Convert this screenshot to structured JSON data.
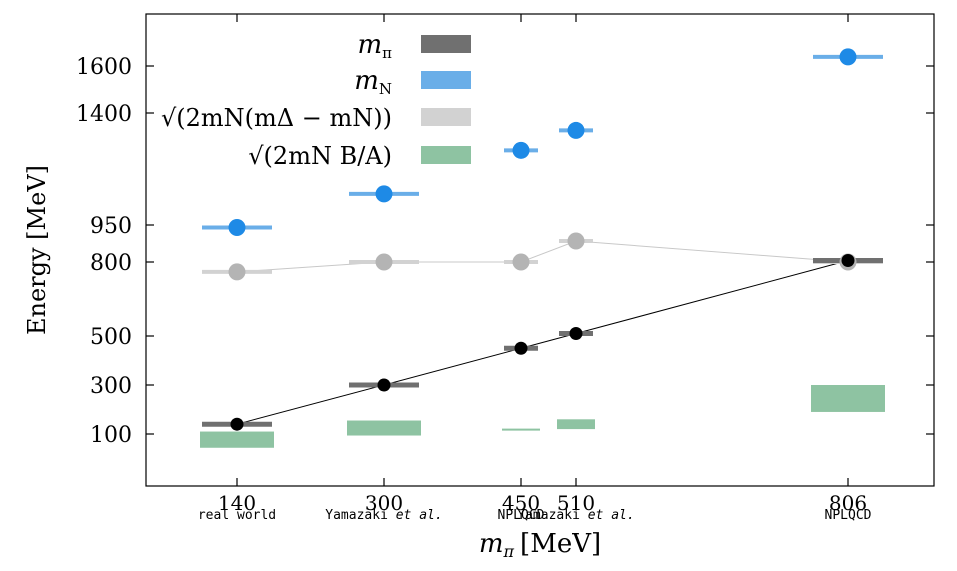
{
  "chart_data": {
    "type": "scatter",
    "title": "",
    "xlabel_main": "m",
    "xlabel_sub": "π",
    "xlabel_unit": "[MeV]",
    "ylabel": "Energy [MeV]",
    "ylim": [
      -70,
      1800
    ],
    "grid": false,
    "legend_position": "top-center",
    "x_categories": [
      {
        "id": "c140",
        "label": "140",
        "sublabel_parts": [
          "real world"
        ]
      },
      {
        "id": "c300",
        "label": "300",
        "sublabel_parts": [
          "Yamazaki ",
          "et al.",
          ""
        ]
      },
      {
        "id": "c450",
        "label": "450",
        "sublabel_parts": [
          "NPLQCD"
        ]
      },
      {
        "id": "c510",
        "label": "510",
        "sublabel_parts": [
          "Yamazaki ",
          "et al.",
          ""
        ]
      },
      {
        "id": "c806",
        "label": "806",
        "sublabel_parts": [
          "NPLQCD"
        ]
      }
    ],
    "y_ticks": [
      100,
      300,
      500,
      800,
      950,
      1400,
      1600
    ],
    "series": [
      {
        "name": "m_pi",
        "legend_text": "m",
        "legend_sub": "π",
        "color": "#707070",
        "marker": "#000000",
        "connected": true,
        "values": [
          140,
          300,
          450,
          510,
          806
        ]
      },
      {
        "name": "m_N",
        "legend_text": "m",
        "legend_sub": "N",
        "color": "#6aaee8",
        "marker": "#1e8ae6",
        "connected": false,
        "values": [
          940,
          1075,
          1250,
          1330,
          1635
        ]
      },
      {
        "name": "sqrt(2 m_N (m_Delta - m_N))",
        "legend_text": "√(2mN(mΔ − mN))",
        "color": "#d2d2d2",
        "marker": "#b4b4b4",
        "connected": true,
        "values": [
          760,
          800,
          800,
          885,
          800
        ]
      },
      {
        "name": "sqrt(2 m_N B/A)",
        "legend_text": "√(2mN B/A)",
        "color": "#8ec3a2",
        "marker": "",
        "connected": false,
        "bands": [
          [
            55,
            110
          ],
          [
            95,
            155
          ],
          [
            115,
            122
          ],
          [
            120,
            160
          ],
          [
            190,
            300
          ]
        ]
      }
    ]
  }
}
